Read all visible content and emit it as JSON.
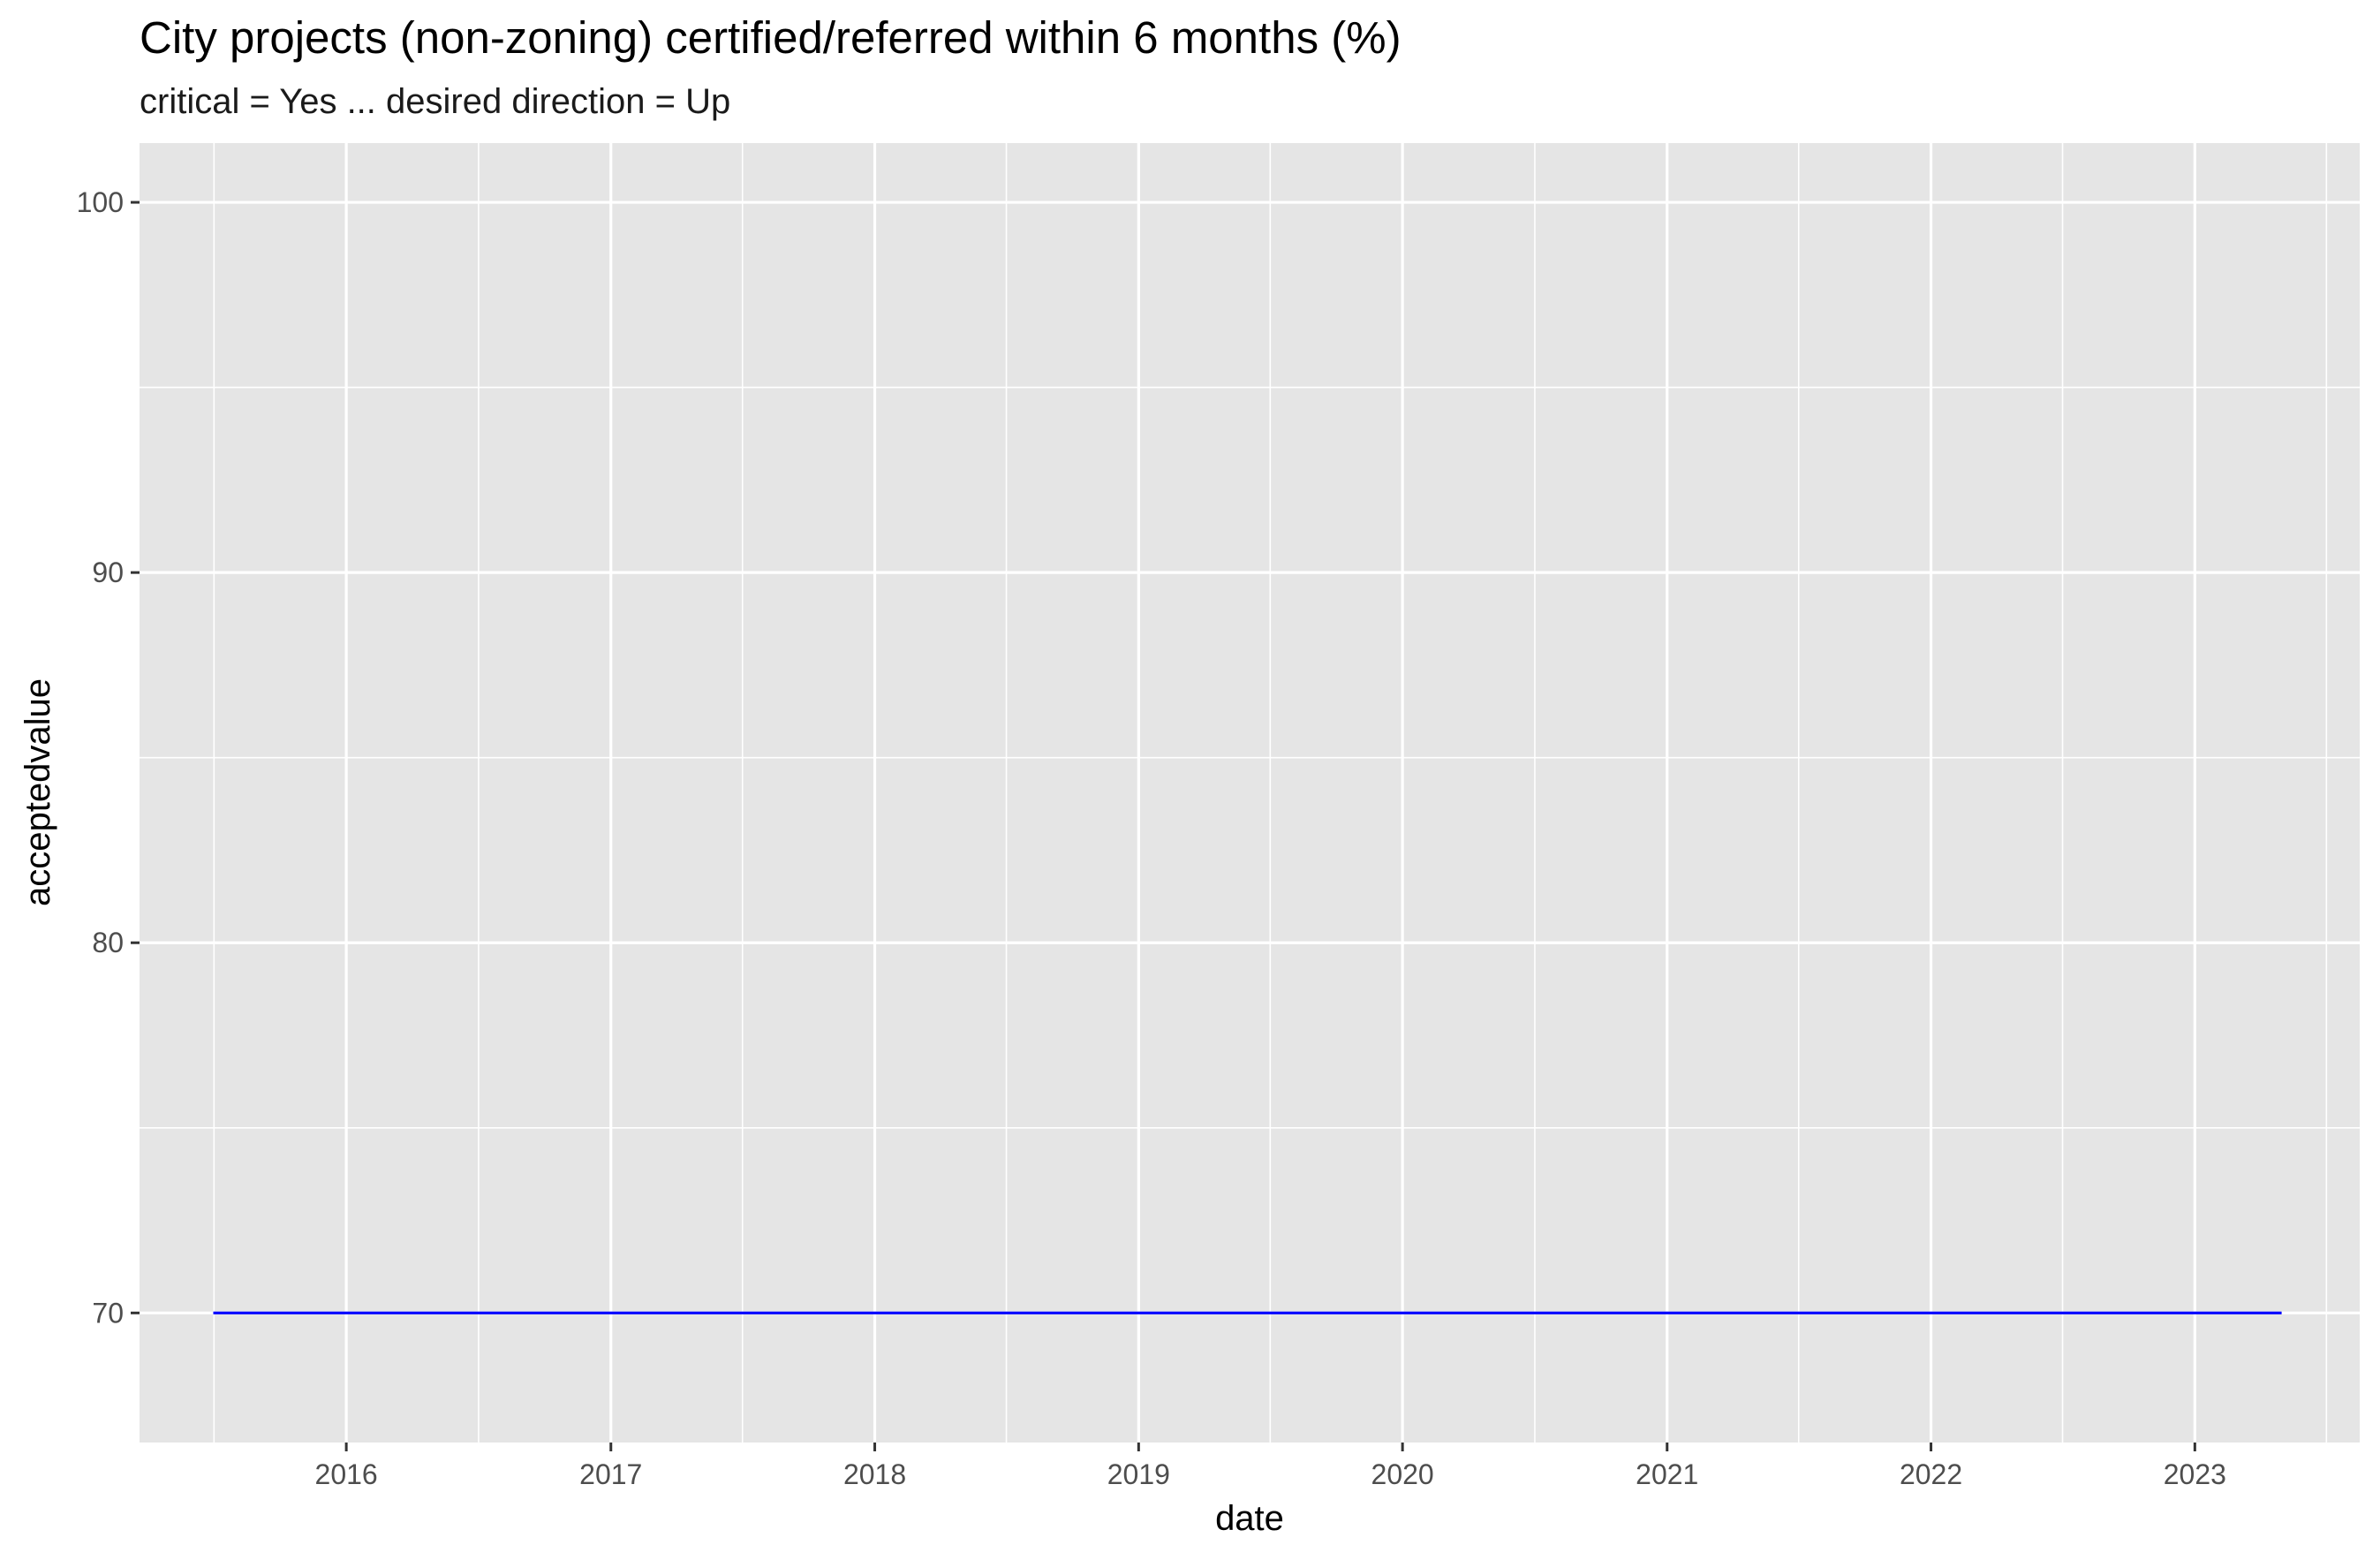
{
  "chart_data": {
    "type": "line",
    "title": "City projects (non-zoning) certified/referred within 6 months (%)",
    "subtitle": "critical = Yes ... desired direction = Up",
    "xlabel": "date",
    "ylabel": "acceptedvalue",
    "x_ticks": [
      "2016",
      "2017",
      "2018",
      "2019",
      "2020",
      "2021",
      "2022",
      "2023"
    ],
    "y_ticks": [
      "70",
      "80",
      "90",
      "100"
    ],
    "xlim": [
      "2015-03-21",
      "2023-08-17"
    ],
    "ylim": [
      66.5,
      101.6
    ],
    "grid": true,
    "series": [
      {
        "color": "#0000ff",
        "x": [
          "2015-07-01",
          "2023-05-01"
        ],
        "y": [
          70,
          70
        ]
      }
    ]
  }
}
